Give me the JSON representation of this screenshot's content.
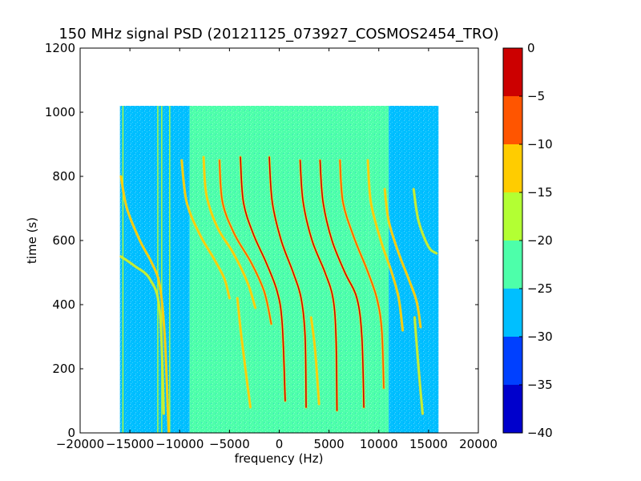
{
  "chart_data": {
    "type": "heatmap",
    "title": "150 MHz signal PSD (20121125_073927_COSMOS2454_TRO)",
    "xlabel": "frequency (Hz)",
    "ylabel": "time (s)",
    "xlim": [
      -20000,
      20000
    ],
    "ylim": [
      0,
      1200
    ],
    "xticks": [
      -20000,
      -15000,
      -10000,
      -5000,
      0,
      5000,
      10000,
      15000,
      20000
    ],
    "xtick_labels": [
      "−20000",
      "−15000",
      "−10000",
      "−5000",
      "0",
      "5000",
      "10000",
      "15000",
      "20000"
    ],
    "yticks": [
      0,
      200,
      400,
      600,
      800,
      1000,
      1200
    ],
    "ytick_labels": [
      "0",
      "200",
      "400",
      "600",
      "800",
      "1000",
      "1200"
    ],
    "data_extent": {
      "x": [
        -16000,
        16000
      ],
      "y": [
        0,
        1020
      ]
    },
    "background_bands": [
      {
        "x": [
          -16000,
          -9000
        ],
        "level_db": -27
      },
      {
        "x": [
          -9000,
          -7000
        ],
        "level_db": -25
      },
      {
        "x": [
          -7000,
          9000
        ],
        "level_db": -22
      },
      {
        "x": [
          9000,
          11000
        ],
        "level_db": -25
      },
      {
        "x": [
          11000,
          16000
        ],
        "level_db": -27
      }
    ],
    "vertical_lines": [
      {
        "x": -15700,
        "y": [
          0,
          1020
        ],
        "level_db": -20
      },
      {
        "x": -12200,
        "y": [
          0,
          1020
        ],
        "level_db": -17
      },
      {
        "x": -11800,
        "y": [
          0,
          1020
        ],
        "level_db": -17
      },
      {
        "x": -11000,
        "y": [
          0,
          1020
        ],
        "level_db": -20
      }
    ],
    "doppler_traces": [
      {
        "x": [
          -15900,
          -15300,
          -14000,
          -12800,
          -12000,
          -11500,
          -11100
        ],
        "y": [
          800,
          700,
          600,
          530,
          460,
          300,
          0
        ],
        "level_db": -15
      },
      {
        "x": [
          -15900,
          -14500,
          -13000,
          -12000,
          -11600
        ],
        "y": [
          550,
          520,
          480,
          380,
          60
        ],
        "level_db": -16
      },
      {
        "x": [
          -9800,
          -9300,
          -8000,
          -6500,
          -5500,
          -5000
        ],
        "y": [
          850,
          720,
          620,
          540,
          480,
          420
        ],
        "level_db": -14
      },
      {
        "x": [
          -7600,
          -7300,
          -6200,
          -4600,
          -3200,
          -2400
        ],
        "y": [
          860,
          740,
          640,
          560,
          470,
          390
        ],
        "level_db": -12
      },
      {
        "x": [
          -6000,
          -5700,
          -4500,
          -2800,
          -1500,
          -800
        ],
        "y": [
          850,
          720,
          620,
          530,
          440,
          340
        ],
        "level_db": -10
      },
      {
        "x": [
          -3900,
          -3600,
          -2600,
          -1300,
          -200,
          300,
          600
        ],
        "y": [
          860,
          720,
          620,
          530,
          440,
          340,
          100
        ],
        "level_db": -3
      },
      {
        "x": [
          -1000,
          -700,
          200,
          1400,
          2200,
          2600,
          2700
        ],
        "y": [
          860,
          720,
          600,
          500,
          420,
          300,
          80
        ],
        "level_db": 0
      },
      {
        "x": [
          2100,
          2400,
          3300,
          4600,
          5400,
          5700,
          5800
        ],
        "y": [
          850,
          720,
          600,
          500,
          420,
          300,
          70
        ],
        "level_db": -2
      },
      {
        "x": [
          4100,
          4400,
          5300,
          6600,
          7800,
          8300,
          8500
        ],
        "y": [
          850,
          720,
          600,
          500,
          420,
          300,
          80
        ],
        "level_db": -5
      },
      {
        "x": [
          6100,
          6400,
          7500,
          8800,
          9800,
          10300,
          10500
        ],
        "y": [
          850,
          720,
          610,
          510,
          420,
          320,
          140
        ],
        "level_db": -8
      },
      {
        "x": [
          8900,
          9200,
          10200,
          11300,
          12000,
          12400
        ],
        "y": [
          850,
          720,
          600,
          500,
          420,
          320
        ],
        "level_db": -14
      },
      {
        "x": [
          10600,
          11000,
          12000,
          13000,
          13800,
          14200
        ],
        "y": [
          760,
          660,
          560,
          480,
          410,
          330
        ],
        "level_db": -15
      },
      {
        "x": [
          13500,
          14000,
          15000,
          15800
        ],
        "y": [
          760,
          660,
          580,
          560
        ],
        "level_db": -16
      },
      {
        "x": [
          -4200,
          -3800,
          -2900
        ],
        "y": [
          420,
          300,
          80
        ],
        "level_db": -14
      },
      {
        "x": [
          3200,
          3600,
          4000
        ],
        "y": [
          360,
          260,
          90
        ],
        "level_db": -15
      },
      {
        "x": [
          13600,
          14000,
          14400
        ],
        "y": [
          360,
          200,
          60
        ],
        "level_db": -17
      }
    ],
    "colorbar": {
      "range": [
        -40,
        0
      ],
      "levels": [
        -40,
        -35,
        -30,
        -25,
        -20,
        -15,
        -10,
        -5,
        0
      ],
      "tick_labels": [
        "−40",
        "−35",
        "−30",
        "−25",
        "−20",
        "−15",
        "−10",
        "−5",
        "0"
      ],
      "colors": [
        "#0000cc",
        "#0040ff",
        "#00bfff",
        "#4dffaa",
        "#b3ff33",
        "#ffcc00",
        "#ff5500",
        "#cc0000"
      ]
    },
    "grid": false,
    "legend": "none"
  }
}
